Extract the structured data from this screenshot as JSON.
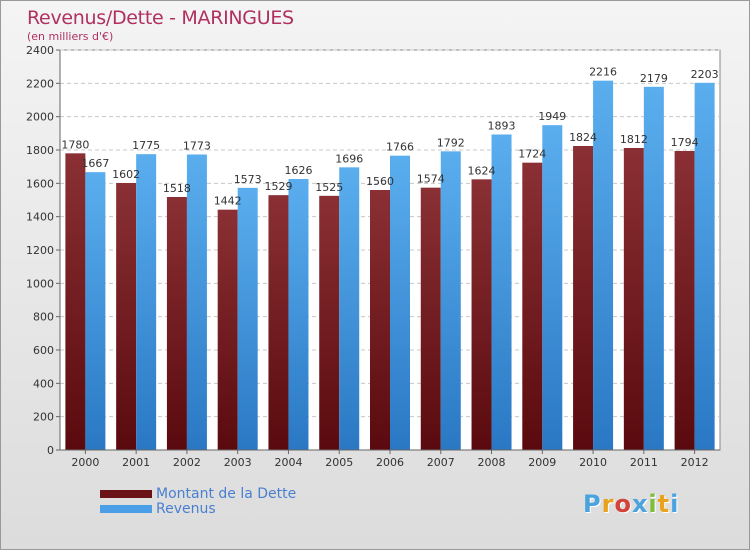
{
  "header": {
    "title": "Revenus/Dette - MARINGUES",
    "subtitle": "(en milliers d'€)"
  },
  "logo": {
    "text": "Proxiti",
    "colors": [
      "#4aa3df",
      "#e8a21c",
      "#d2443a",
      "#4aa3df",
      "#7bbf3a",
      "#e8a21c",
      "#4aa3df"
    ]
  },
  "chart_data": {
    "type": "bar",
    "title": "Revenus/Dette - MARINGUES",
    "subtitle": "(en milliers d'€)",
    "xlabel": "",
    "ylabel": "",
    "ylim": [
      0,
      2400
    ],
    "yticks": [
      0,
      200,
      400,
      600,
      800,
      1000,
      1200,
      1400,
      1600,
      1800,
      2000,
      2200,
      2400
    ],
    "grid": true,
    "legend_position": "bottom-left",
    "categories": [
      "2000",
      "2001",
      "2002",
      "2003",
      "2004",
      "2005",
      "2006",
      "2007",
      "2008",
      "2009",
      "2010",
      "2011",
      "2012"
    ],
    "series": [
      {
        "name": "Montant de la Dette",
        "color": "#7a1e22",
        "values": [
          1780,
          1602,
          1518,
          1442,
          1529,
          1525,
          1560,
          1574,
          1624,
          1724,
          1824,
          1812,
          1794
        ]
      },
      {
        "name": "Revenus",
        "color": "#4a9fe6",
        "values": [
          1667,
          1775,
          1773,
          1573,
          1626,
          1696,
          1766,
          1792,
          1893,
          1949,
          2216,
          2179,
          2203
        ]
      }
    ]
  }
}
